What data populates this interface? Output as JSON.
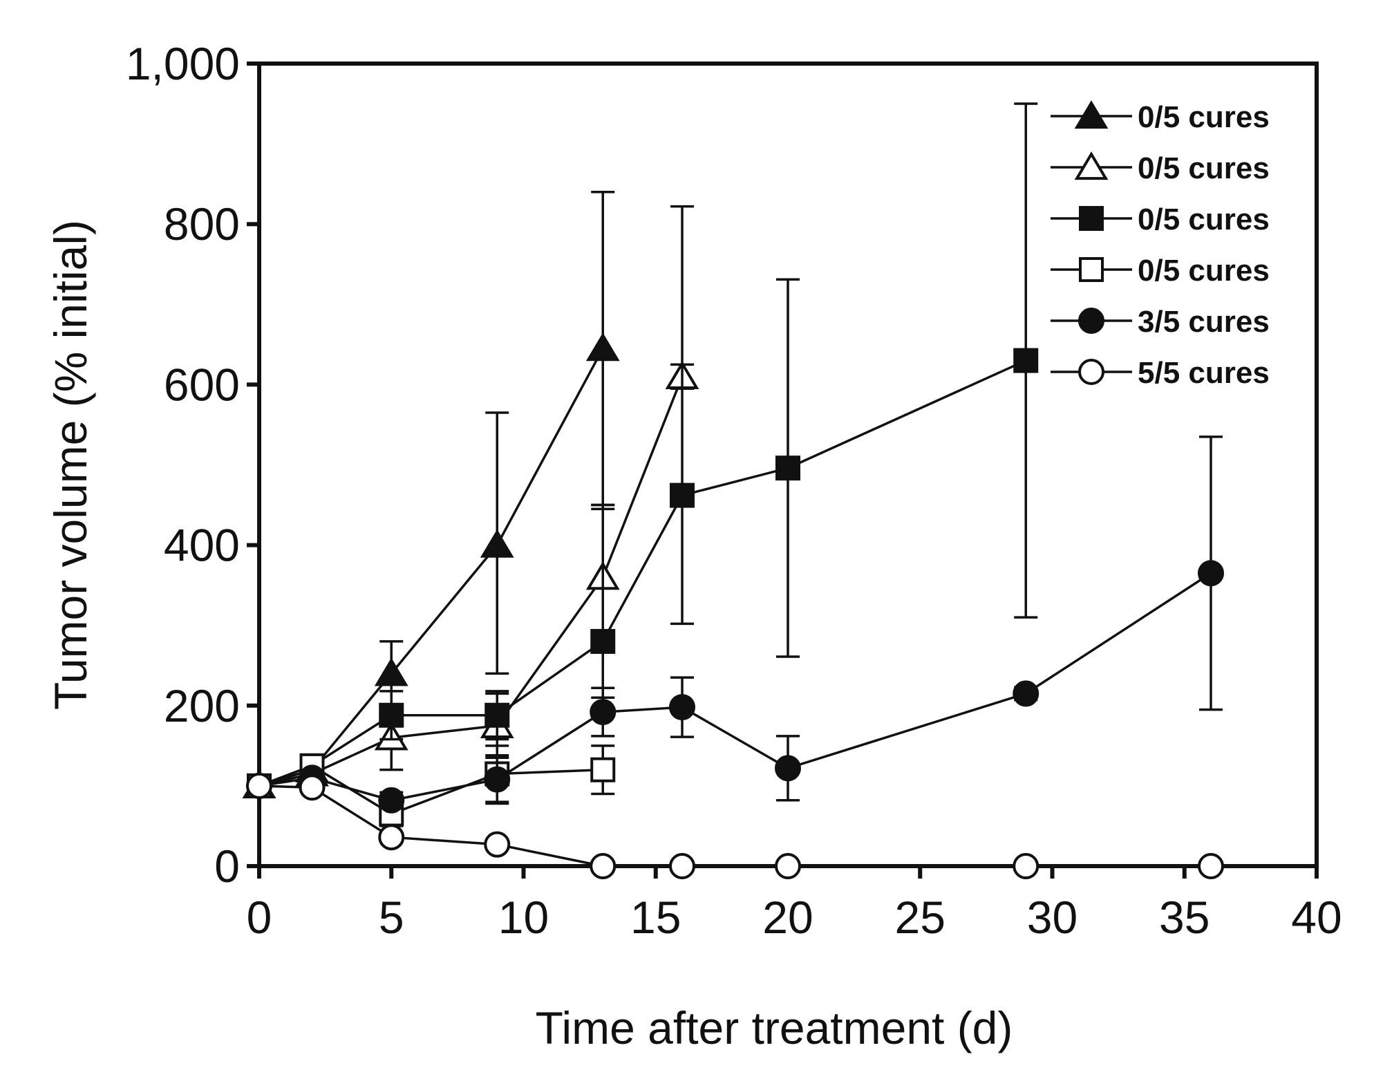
{
  "chart_data": {
    "type": "line",
    "title": "",
    "xlabel": "Time after treatment (d)",
    "ylabel": "Tumor volume (% initial)",
    "xlim": [
      0,
      40
    ],
    "ylim": [
      0,
      1000
    ],
    "xticks": [
      0,
      5,
      10,
      15,
      20,
      25,
      30,
      35,
      40
    ],
    "yticks": [
      0,
      200,
      400,
      600,
      800,
      1000
    ],
    "xtick_labels": [
      "0",
      "5",
      "10",
      "15",
      "20",
      "25",
      "30",
      "35",
      "40"
    ],
    "ytick_labels": [
      "0",
      "200",
      "400",
      "600",
      "800",
      "1,000"
    ],
    "grid": false,
    "legend_position": "top-right",
    "colors": {
      "ink": "#111111",
      "fill_open": "#ffffff"
    },
    "series": [
      {
        "name": "0/5 cures",
        "marker": "triangle-filled",
        "x": [
          0,
          2,
          5,
          9,
          13
        ],
        "y": [
          100,
          120,
          240,
          400,
          645
        ],
        "err_upper": [
          5,
          8,
          40,
          165,
          195
        ],
        "err_lower": [
          5,
          8,
          40,
          160,
          195
        ]
      },
      {
        "name": "0/5 cures",
        "marker": "triangle-open",
        "x": [
          0,
          2,
          5,
          9,
          13,
          16
        ],
        "y": [
          100,
          115,
          160,
          175,
          360,
          610
        ],
        "err_upper": [
          5,
          8,
          40,
          40,
          85,
          15
        ],
        "err_lower": [
          5,
          8,
          40,
          40,
          85,
          15
        ]
      },
      {
        "name": "0/5 cures",
        "marker": "square-filled",
        "x": [
          0,
          2,
          5,
          9,
          13,
          16,
          20,
          29
        ],
        "y": [
          100,
          125,
          188,
          188,
          280,
          462,
          496,
          630
        ],
        "err_upper": [
          5,
          8,
          30,
          30,
          170,
          360,
          235,
          320
        ],
        "err_lower": [
          5,
          8,
          30,
          30,
          70,
          160,
          235,
          320
        ]
      },
      {
        "name": "0/5 cures",
        "marker": "square-open",
        "x": [
          0,
          2,
          5,
          9,
          13
        ],
        "y": [
          100,
          125,
          65,
          115,
          120
        ],
        "err_upper": [
          5,
          8,
          15,
          35,
          30
        ],
        "err_lower": [
          5,
          8,
          15,
          35,
          30
        ]
      },
      {
        "name": "3/5 cures",
        "marker": "circle-filled",
        "x": [
          0,
          2,
          5,
          9,
          13,
          16,
          20,
          29,
          36
        ],
        "y": [
          100,
          110,
          82,
          108,
          192,
          198,
          122,
          215,
          365
        ],
        "err_upper": [
          5,
          8,
          10,
          30,
          30,
          37,
          40,
          8,
          170
        ],
        "err_lower": [
          5,
          8,
          10,
          30,
          30,
          37,
          40,
          8,
          170
        ]
      },
      {
        "name": "5/5 cures",
        "marker": "circle-open",
        "x": [
          0,
          2,
          5,
          9,
          13,
          16,
          20,
          29,
          36
        ],
        "y": [
          100,
          98,
          36,
          27,
          0,
          0,
          0,
          0,
          0
        ],
        "err_upper": [
          0,
          0,
          0,
          0,
          0,
          0,
          0,
          0,
          0
        ],
        "err_lower": [
          0,
          0,
          0,
          0,
          0,
          0,
          0,
          0,
          0
        ]
      }
    ]
  }
}
